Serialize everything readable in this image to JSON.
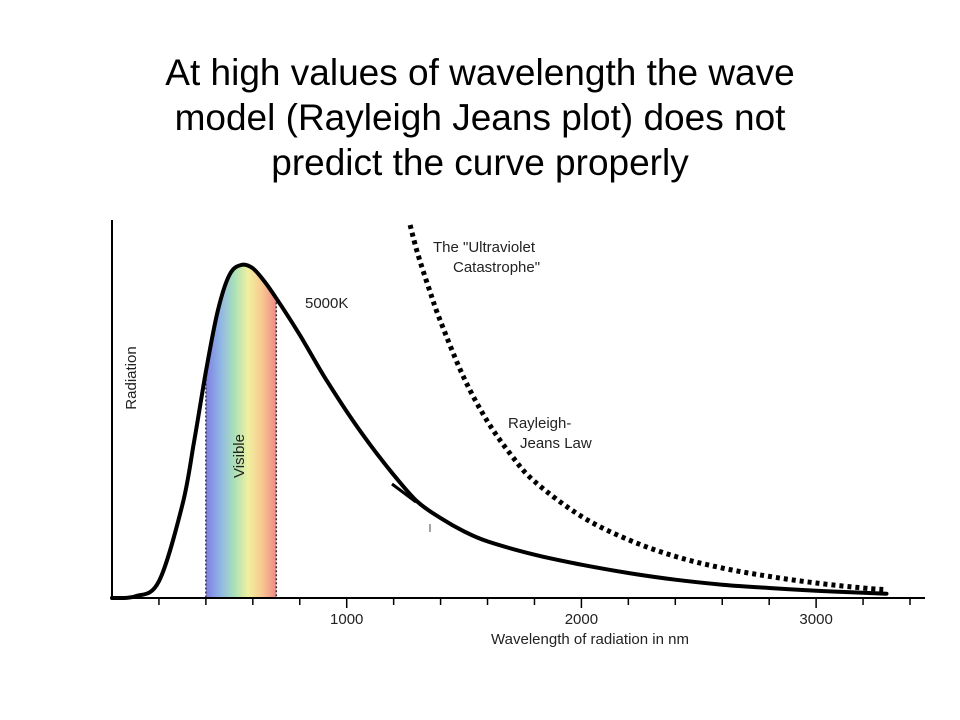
{
  "slide": {
    "title_lines": [
      "At high values of wavelength the wave",
      "model (Rayleigh Jeans plot) does not",
      "predict the curve properly"
    ]
  },
  "chart_data": {
    "type": "line",
    "xlabel": "Wavelength of radiation in nm",
    "ylabel": "Radiation",
    "xlim": [
      0,
      3400
    ],
    "ylim": [
      0,
      1.12
    ],
    "x_ticks": [
      1000,
      2000,
      3000
    ],
    "x_minor_tick_step": 200,
    "grid": false,
    "series": [
      {
        "name": "5000K",
        "style": "solid",
        "color": "#000000",
        "x": [
          0,
          100,
          200,
          300,
          350,
          400,
          450,
          500,
          550,
          600,
          650,
          700,
          800,
          900,
          1000,
          1100,
          1200,
          1300,
          1400,
          1500,
          1600,
          1800,
          2000,
          2200,
          2400,
          2600,
          2800,
          3000,
          3200,
          3300
        ],
        "y": [
          0.0,
          0.005,
          0.05,
          0.28,
          0.47,
          0.68,
          0.86,
          0.97,
          1.0,
          0.99,
          0.95,
          0.9,
          0.79,
          0.67,
          0.56,
          0.46,
          0.37,
          0.29,
          0.24,
          0.2,
          0.17,
          0.13,
          0.1,
          0.075,
          0.055,
          0.04,
          0.03,
          0.022,
          0.016,
          0.013
        ]
      },
      {
        "name": "Rayleigh-\nJeans Law",
        "style": "dotted",
        "color": "#000000",
        "x": [
          1270,
          1300,
          1350,
          1400,
          1500,
          1600,
          1700,
          1800,
          2000,
          2200,
          2400,
          2600,
          2800,
          3000,
          3200,
          3300
        ],
        "y": [
          1.12,
          1.04,
          0.93,
          0.83,
          0.66,
          0.53,
          0.43,
          0.35,
          0.245,
          0.175,
          0.125,
          0.09,
          0.065,
          0.045,
          0.03,
          0.025
        ]
      }
    ],
    "visible_band": {
      "label": "Visible",
      "x_start": 400,
      "x_end": 700,
      "colors": [
        "#7e7fe0",
        "#8fb4e8",
        "#a8e0b8",
        "#f0f0a0",
        "#f8c890",
        "#f08888"
      ]
    },
    "annotations": [
      {
        "text": "5000K"
      },
      {
        "text": "The \"Ultraviolet\nCatastrophe\""
      },
      {
        "text": "Rayleigh-\nJeans Law"
      }
    ]
  }
}
